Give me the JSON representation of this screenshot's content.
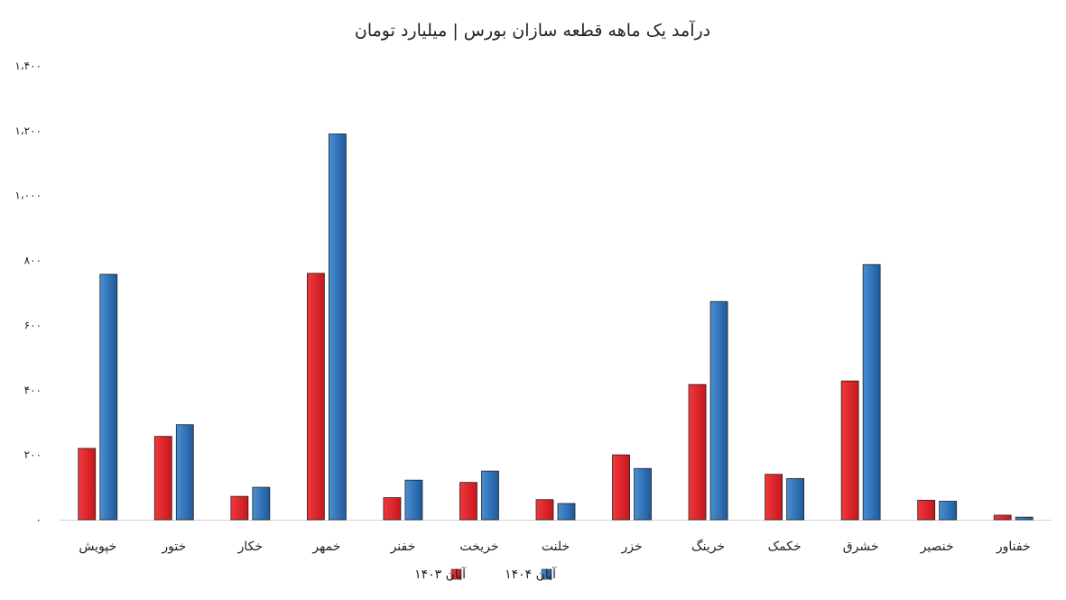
{
  "chart_data": {
    "type": "bar",
    "title": "درآمد یک ماهه قطعه سازان بورس | میلیارد تومان",
    "xlabel": "",
    "ylabel": "",
    "ylim": [
      0,
      1400
    ],
    "yticks": [
      0,
      200,
      400,
      600,
      800,
      1000,
      1200,
      1400
    ],
    "ytick_labels": [
      "۰",
      "۲۰۰",
      "۴۰۰",
      "۶۰۰",
      "۸۰۰",
      "۱،۰۰۰",
      "۱،۲۰۰",
      "۱،۴۰۰"
    ],
    "grid": false,
    "legend_position": "bottom",
    "categories": [
      "خپویش",
      "ختور",
      "خکار",
      "خمهر",
      "خفنر",
      "خریخت",
      "خلنت",
      "خزر",
      "خرینگ",
      "خکمک",
      "خشرق",
      "خنصیر",
      "خفناور"
    ],
    "series": [
      {
        "name": "آبان ۱۴۰۳",
        "color": "#e32228",
        "values": [
          220,
          257,
          72,
          760,
          68,
          115,
          62,
          200,
          417,
          140,
          428,
          60,
          14
        ]
      },
      {
        "name": "آبان ۱۴۰۴",
        "color": "#2a6fb5",
        "values": [
          757,
          293,
          100,
          1190,
          122,
          150,
          50,
          158,
          673,
          127,
          787,
          57,
          8
        ]
      }
    ]
  }
}
